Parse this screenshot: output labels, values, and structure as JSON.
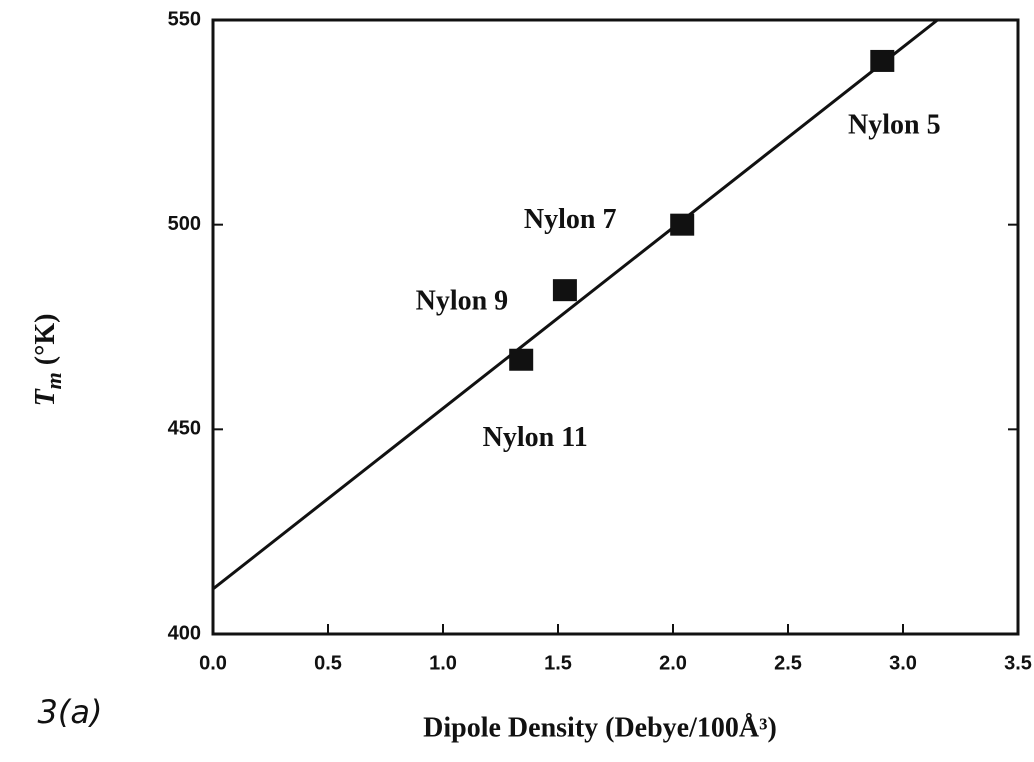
{
  "chart_data": {
    "type": "scatter",
    "ylabel": "T",
    "ylabel_sub": "m",
    "ylabel_rest": " (°K)",
    "xlabel": "Dipole Density (Debye/100Å³)",
    "annotation": "3(a)",
    "x": [
      1.34,
      1.53,
      2.04,
      2.91
    ],
    "values": [
      467,
      484,
      500,
      540
    ],
    "point_labels": [
      "Nylon 11",
      "Nylon 9",
      "Nylon 7",
      "Nylon 5"
    ],
    "color": "#111111",
    "fit": {
      "x": [
        0,
        3.15
      ],
      "y": [
        411,
        550
      ]
    },
    "xlim": [
      0,
      3.5
    ],
    "xticks": [
      {
        "value": 0,
        "label": "0.0"
      },
      0.5,
      {
        "value": 1,
        "label": "1.0"
      },
      1.5,
      {
        "value": 2,
        "label": "2.0"
      },
      2.5,
      {
        "value": 3,
        "label": "3.0"
      },
      3.5
    ],
    "ylim": [
      400,
      550
    ],
    "yticks": [
      400,
      450,
      500,
      550
    ],
    "grid": false
  }
}
